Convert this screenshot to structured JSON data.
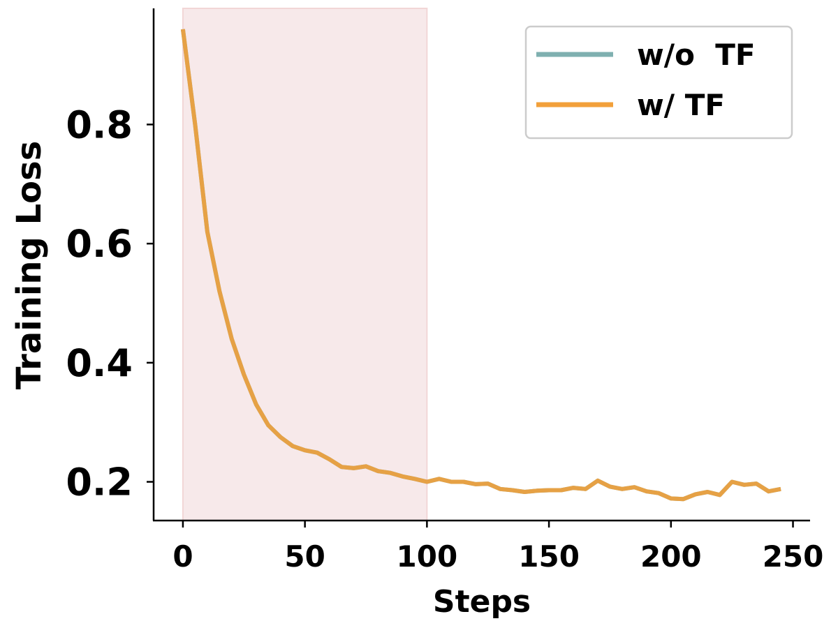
{
  "chart_data": {
    "type": "line",
    "xlabel": "Steps",
    "ylabel": "Training Loss",
    "xlim": [
      -12,
      257
    ],
    "ylim": [
      0.135,
      0.995
    ],
    "xticks": [
      0,
      50,
      100,
      150,
      200,
      250
    ],
    "yticks": [
      0.2,
      0.4,
      0.6,
      0.8
    ],
    "xtick_labels": [
      "0",
      "50",
      "100",
      "150",
      "200",
      "250"
    ],
    "ytick_labels": [
      "0.2",
      "0.4",
      "0.6",
      "0.8"
    ],
    "shaded_region": {
      "x_start": 0,
      "x_end": 100,
      "color": "#f7e9ea"
    },
    "grid": false,
    "legend_position": "top-right",
    "series": [
      {
        "name": "w/o  TF",
        "color": "#7fb0b0",
        "x": [
          0,
          5,
          10,
          15,
          20,
          25,
          30,
          35,
          40,
          45,
          50,
          55,
          60,
          65,
          70,
          75,
          80,
          85,
          90,
          95,
          100,
          105,
          110,
          115,
          120,
          125,
          130,
          135,
          140,
          145,
          150,
          155,
          160,
          165,
          170,
          175,
          180,
          185,
          190,
          195,
          200,
          205,
          210,
          215,
          220,
          225,
          230,
          235,
          240,
          245
        ],
        "y": [
          0.96,
          0.8,
          0.62,
          0.52,
          0.44,
          0.38,
          0.33,
          0.295,
          0.275,
          0.26,
          0.253,
          0.249,
          0.238,
          0.225,
          0.223,
          0.226,
          0.218,
          0.215,
          0.209,
          0.205,
          0.2,
          0.205,
          0.2,
          0.2,
          0.196,
          0.197,
          0.188,
          0.186,
          0.183,
          0.185,
          0.186,
          0.186,
          0.19,
          0.188,
          0.202,
          0.192,
          0.188,
          0.191,
          0.184,
          0.181,
          0.172,
          0.171,
          0.179,
          0.183,
          0.178,
          0.2,
          0.195,
          0.197,
          0.184,
          0.188
        ]
      },
      {
        "name": "w/ TF",
        "color": "#f2a03a",
        "x": [
          0,
          5,
          10,
          15,
          20,
          25,
          30,
          35,
          40,
          45,
          50,
          55,
          60,
          65,
          70,
          75,
          80,
          85,
          90,
          95,
          100,
          105,
          110,
          115,
          120,
          125,
          130,
          135,
          140,
          145,
          150,
          155,
          160,
          165,
          170,
          175,
          180,
          185,
          190,
          195,
          200,
          205,
          210,
          215,
          220,
          225,
          230,
          235,
          240,
          245
        ],
        "y": [
          0.96,
          0.8,
          0.62,
          0.52,
          0.44,
          0.38,
          0.33,
          0.295,
          0.275,
          0.26,
          0.253,
          0.249,
          0.238,
          0.225,
          0.223,
          0.226,
          0.218,
          0.215,
          0.209,
          0.205,
          0.2,
          0.205,
          0.2,
          0.2,
          0.196,
          0.197,
          0.188,
          0.186,
          0.183,
          0.185,
          0.186,
          0.186,
          0.19,
          0.188,
          0.202,
          0.192,
          0.188,
          0.191,
          0.184,
          0.181,
          0.172,
          0.171,
          0.179,
          0.183,
          0.178,
          0.2,
          0.195,
          0.197,
          0.184,
          0.188
        ]
      }
    ]
  }
}
